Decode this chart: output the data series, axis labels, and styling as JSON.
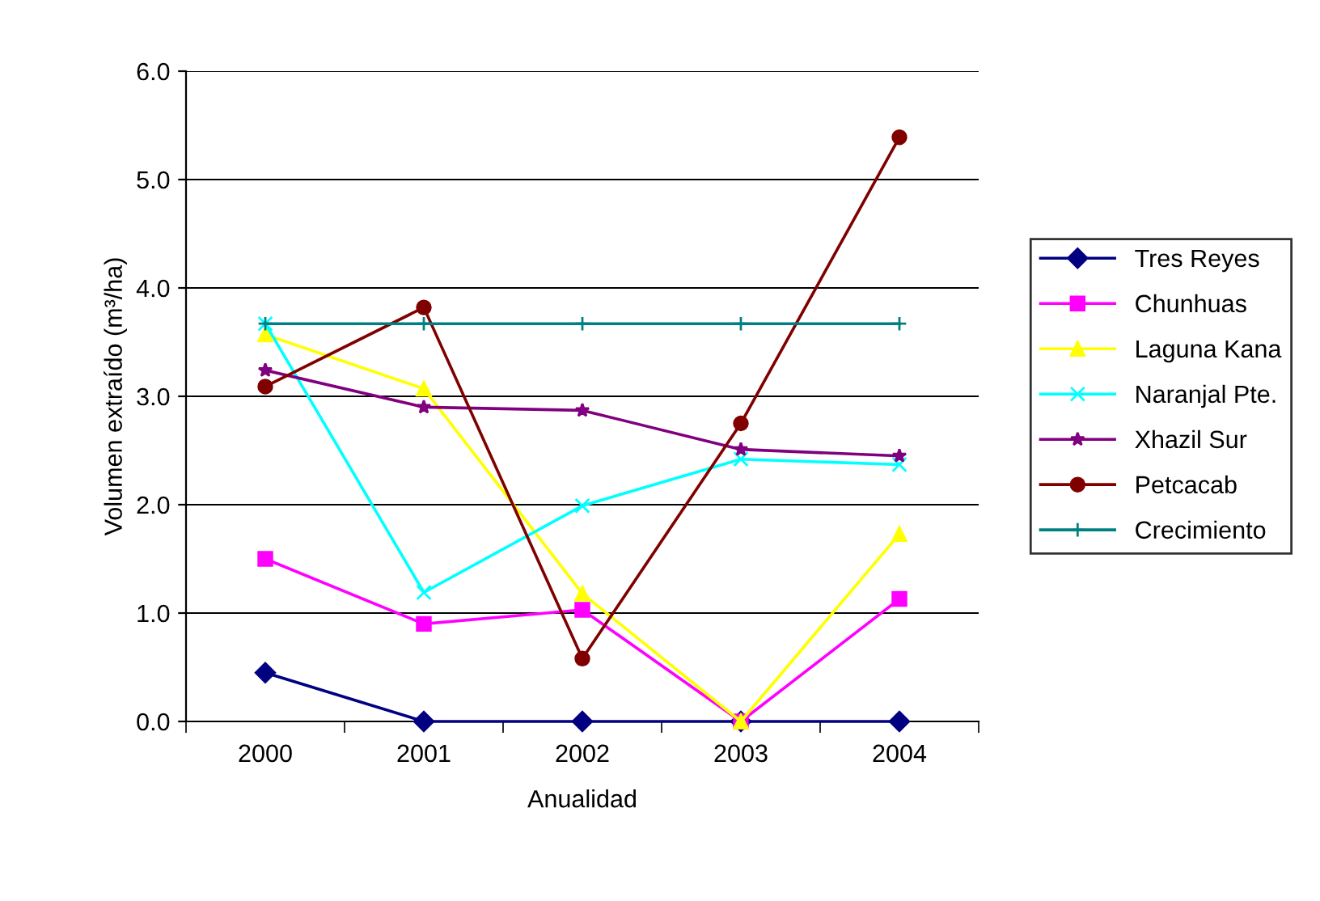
{
  "chart_data": {
    "type": "line",
    "xlabel": "Anualidad",
    "ylabel": "Volumen extraído (m³/ha)",
    "categories": [
      "2000",
      "2001",
      "2002",
      "2003",
      "2004"
    ],
    "ylim": [
      0,
      6
    ],
    "yticks": [
      {
        "value": 0,
        "label": "0.0"
      },
      {
        "value": 1,
        "label": "1.0"
      },
      {
        "value": 2,
        "label": "2.0"
      },
      {
        "value": 3,
        "label": "3.0"
      },
      {
        "value": 4,
        "label": "4.0"
      },
      {
        "value": 5,
        "label": "5.0"
      },
      {
        "value": 6,
        "label": "6.0"
      }
    ],
    "grid": "y",
    "legend": "right",
    "series": [
      {
        "name": "Tres Reyes",
        "color": "#000080",
        "marker": "diamond",
        "values": [
          0.45,
          0,
          0,
          0,
          0
        ]
      },
      {
        "name": "Chunhuas",
        "color": "#ff00ff",
        "marker": "square",
        "values": [
          1.5,
          0.9,
          1.03,
          0,
          1.13
        ]
      },
      {
        "name": "Laguna Kana",
        "color": "#ffff00",
        "marker": "triangle",
        "values": [
          3.57,
          3.07,
          1.18,
          0,
          1.73
        ]
      },
      {
        "name": "Naranjal Pte.",
        "color": "#00ffff",
        "marker": "cross",
        "values": [
          3.67,
          1.19,
          1.99,
          2.42,
          2.37
        ]
      },
      {
        "name": "Xhazil Sur",
        "color": "#800080",
        "marker": "star",
        "values": [
          3.24,
          2.9,
          2.87,
          2.51,
          2.45
        ]
      },
      {
        "name": "Petcacab",
        "color": "#800000",
        "marker": "circle",
        "values": [
          3.09,
          3.82,
          0.58,
          2.75,
          5.39
        ]
      },
      {
        "name": "Crecimiento",
        "color": "#008080",
        "marker": "plus",
        "values": [
          3.67,
          3.67,
          3.67,
          3.67,
          3.67
        ]
      }
    ]
  }
}
